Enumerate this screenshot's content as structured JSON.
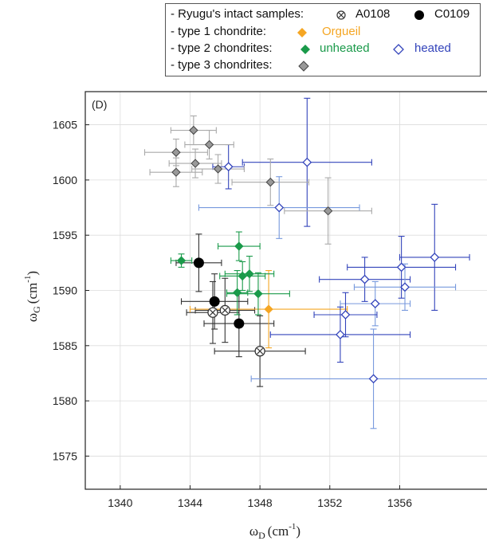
{
  "chart_data": {
    "type": "scatter",
    "panel_label": "(D)",
    "xlabel": "ω",
    "xlabel_sub": "D",
    "xlabel_unit": "(cm",
    "ylabel": "ω",
    "ylabel_sub": "G",
    "ylabel_unit": "(cm",
    "unit_exp": "-1",
    "unit_close": ")",
    "xlim": [
      1338,
      1361
    ],
    "ylim": [
      1572,
      1608
    ],
    "xticks": [
      1340,
      1344,
      1348,
      1352,
      1356
    ],
    "yticks": [
      1575,
      1580,
      1585,
      1590,
      1595,
      1600,
      1605
    ],
    "grid": true,
    "legend_position": "top-right",
    "legend": {
      "rows": [
        {
          "label": "- Ryugu's intact samples:",
          "entries": [
            {
              "marker": "cross-circle",
              "label": "A0108"
            },
            {
              "marker": "black-circle",
              "label": "C0109"
            }
          ]
        },
        {
          "label": "- type 1 chondrite:",
          "entries": [
            {
              "marker": "orange-diamond",
              "label": "Orgueil"
            }
          ]
        },
        {
          "label": "- type 2 chondrites:",
          "entries": [
            {
              "marker": "green-diamond",
              "label": "unheated"
            },
            {
              "marker": "blue-open-diamond",
              "label": "heated"
            }
          ]
        },
        {
          "label": "- type 3 chondrites:",
          "entries": [
            {
              "marker": "gray-diamond",
              "label": ""
            }
          ]
        }
      ]
    },
    "colors": {
      "ryugu_a0108": "#3a3a3a",
      "ryugu_c0109": "#000000",
      "orgueil": "#f5a623",
      "unheated": "#1a9a4a",
      "heated": "#3344bb",
      "heated_light": "#7799dd",
      "type3": "#888888"
    },
    "series": [
      {
        "name": "A0108",
        "marker": "cross-circle",
        "color": "#3a3a3a",
        "points": [
          {
            "x": 1345.3,
            "y": 1588.0,
            "xerr": 1.5,
            "yerr": 2.8
          },
          {
            "x": 1346.0,
            "y": 1588.2,
            "xerr": 1.7,
            "yerr": 2.9
          },
          {
            "x": 1348.0,
            "y": 1584.5,
            "xerr": 2.6,
            "yerr": 3.2
          }
        ]
      },
      {
        "name": "C0109",
        "marker": "black-circle",
        "color": "#000000",
        "points": [
          {
            "x": 1344.5,
            "y": 1592.5,
            "xerr": 1.3,
            "yerr": 2.6
          },
          {
            "x": 1345.4,
            "y": 1589.0,
            "xerr": 1.9,
            "yerr": 2.5
          },
          {
            "x": 1346.8,
            "y": 1587.0,
            "xerr": 2.0,
            "yerr": 3.0
          }
        ]
      },
      {
        "name": "Orgueil",
        "marker": "orange-diamond",
        "color": "#f5a623",
        "points": [
          {
            "x": 1348.5,
            "y": 1588.3,
            "xerr": 4.5,
            "yerr": 3.5
          }
        ]
      },
      {
        "name": "unheated",
        "marker": "green-diamond",
        "color": "#1a9a4a",
        "points": [
          {
            "x": 1343.5,
            "y": 1592.7,
            "xerr": 0.6,
            "yerr": 0.6
          },
          {
            "x": 1346.8,
            "y": 1594.0,
            "xerr": 1.2,
            "yerr": 1.3
          },
          {
            "x": 1347.0,
            "y": 1591.3,
            "xerr": 1.3,
            "yerr": 1.3
          },
          {
            "x": 1347.4,
            "y": 1591.5,
            "xerr": 1.4,
            "yerr": 1.6
          },
          {
            "x": 1346.7,
            "y": 1589.8,
            "xerr": 0.6,
            "yerr": 2.0
          },
          {
            "x": 1347.9,
            "y": 1589.7,
            "xerr": 1.8,
            "yerr": 1.9
          }
        ]
      },
      {
        "name": "heated",
        "marker": "blue-open-diamond",
        "color": "#3344bb",
        "points": [
          {
            "x": 1346.2,
            "y": 1601.2,
            "xerr": 0.9,
            "yerr": 2.0
          },
          {
            "x": 1350.7,
            "y": 1601.6,
            "xerr": 3.7,
            "yerr": 5.8
          },
          {
            "x": 1349.1,
            "y": 1597.5,
            "xerr": 4.6,
            "yerr": 2.8
          },
          {
            "x": 1358.0,
            "y": 1593.0,
            "xerr": 2.0,
            "yerr": 4.8
          },
          {
            "x": 1356.1,
            "y": 1592.1,
            "xerr": 3.1,
            "yerr": 2.8
          },
          {
            "x": 1354.0,
            "y": 1591.0,
            "xerr": 2.6,
            "yerr": 2.0
          },
          {
            "x": 1356.3,
            "y": 1590.3,
            "xerr": 2.9,
            "yerr": 2.1
          },
          {
            "x": 1354.6,
            "y": 1588.8,
            "xerr": 2.0,
            "yerr": 2.0
          },
          {
            "x": 1352.9,
            "y": 1587.8,
            "xerr": 1.8,
            "yerr": 2.0
          },
          {
            "x": 1352.6,
            "y": 1586.0,
            "xerr": 4.0,
            "yerr": 2.5
          },
          {
            "x": 1354.5,
            "y": 1582.0,
            "xerr": 7.0,
            "yerr": 4.5
          }
        ]
      },
      {
        "name": "type 3",
        "marker": "gray-diamond",
        "color": "#888888",
        "points": [
          {
            "x": 1344.2,
            "y": 1604.5,
            "xerr": 1.3,
            "yerr": 1.3
          },
          {
            "x": 1343.2,
            "y": 1602.5,
            "xerr": 1.8,
            "yerr": 1.2
          },
          {
            "x": 1345.1,
            "y": 1603.2,
            "xerr": 1.4,
            "yerr": 1.3
          },
          {
            "x": 1344.3,
            "y": 1601.5,
            "xerr": 1.5,
            "yerr": 1.3
          },
          {
            "x": 1345.6,
            "y": 1601.0,
            "xerr": 1.5,
            "yerr": 1.3
          },
          {
            "x": 1343.2,
            "y": 1600.7,
            "xerr": 1.5,
            "yerr": 1.3
          },
          {
            "x": 1348.6,
            "y": 1599.8,
            "xerr": 2.2,
            "yerr": 2.1
          },
          {
            "x": 1351.9,
            "y": 1597.2,
            "xerr": 2.5,
            "yerr": 3.0
          }
        ]
      }
    ]
  }
}
